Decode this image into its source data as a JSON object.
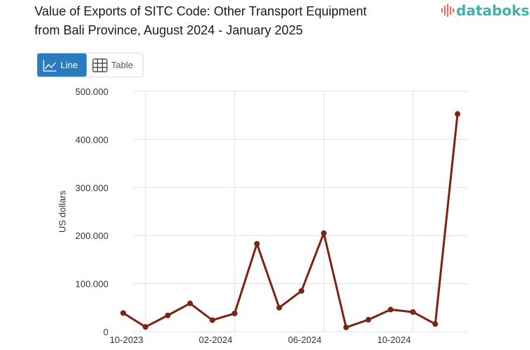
{
  "header": {
    "title_line1": "Value of Exports of SITC Code: Other Transport Equipment",
    "title_line2": "from Bali Province, August 2024 - January 2025",
    "logo_text": "databoks"
  },
  "toggle": {
    "line_label": "Line",
    "table_label": "Table",
    "active": "Line"
  },
  "colors": {
    "line": "#7a2414",
    "accent": "#2b7bbd",
    "logo": "#3fb3a8"
  },
  "chart_data": {
    "type": "line",
    "title": "Value of Exports of SITC Code: Other Transport Equipment from Bali Province, August 2024 - January 2025",
    "xlabel": "",
    "ylabel": "US dollars",
    "ylim": [
      0,
      500000
    ],
    "yticks": [
      "0",
      "100.000",
      "200.000",
      "300.000",
      "400.000",
      "500.000"
    ],
    "xticks": [
      "10-2023",
      "02-2024",
      "06-2024",
      "10-2024"
    ],
    "grid": true,
    "categories": [
      "09-2023",
      "10-2023",
      "11-2023",
      "12-2023",
      "01-2024",
      "02-2024",
      "03-2024",
      "04-2024",
      "05-2024",
      "06-2024",
      "07-2024",
      "08-2024",
      "09-2024",
      "10-2024",
      "11-2024",
      "12-2024"
    ],
    "series": [
      {
        "name": "US dollars",
        "values": [
          39000,
          10000,
          34000,
          59000,
          24000,
          38000,
          183000,
          50000,
          85000,
          205000,
          9000,
          25000,
          46000,
          41000,
          16000,
          453000
        ]
      }
    ]
  }
}
